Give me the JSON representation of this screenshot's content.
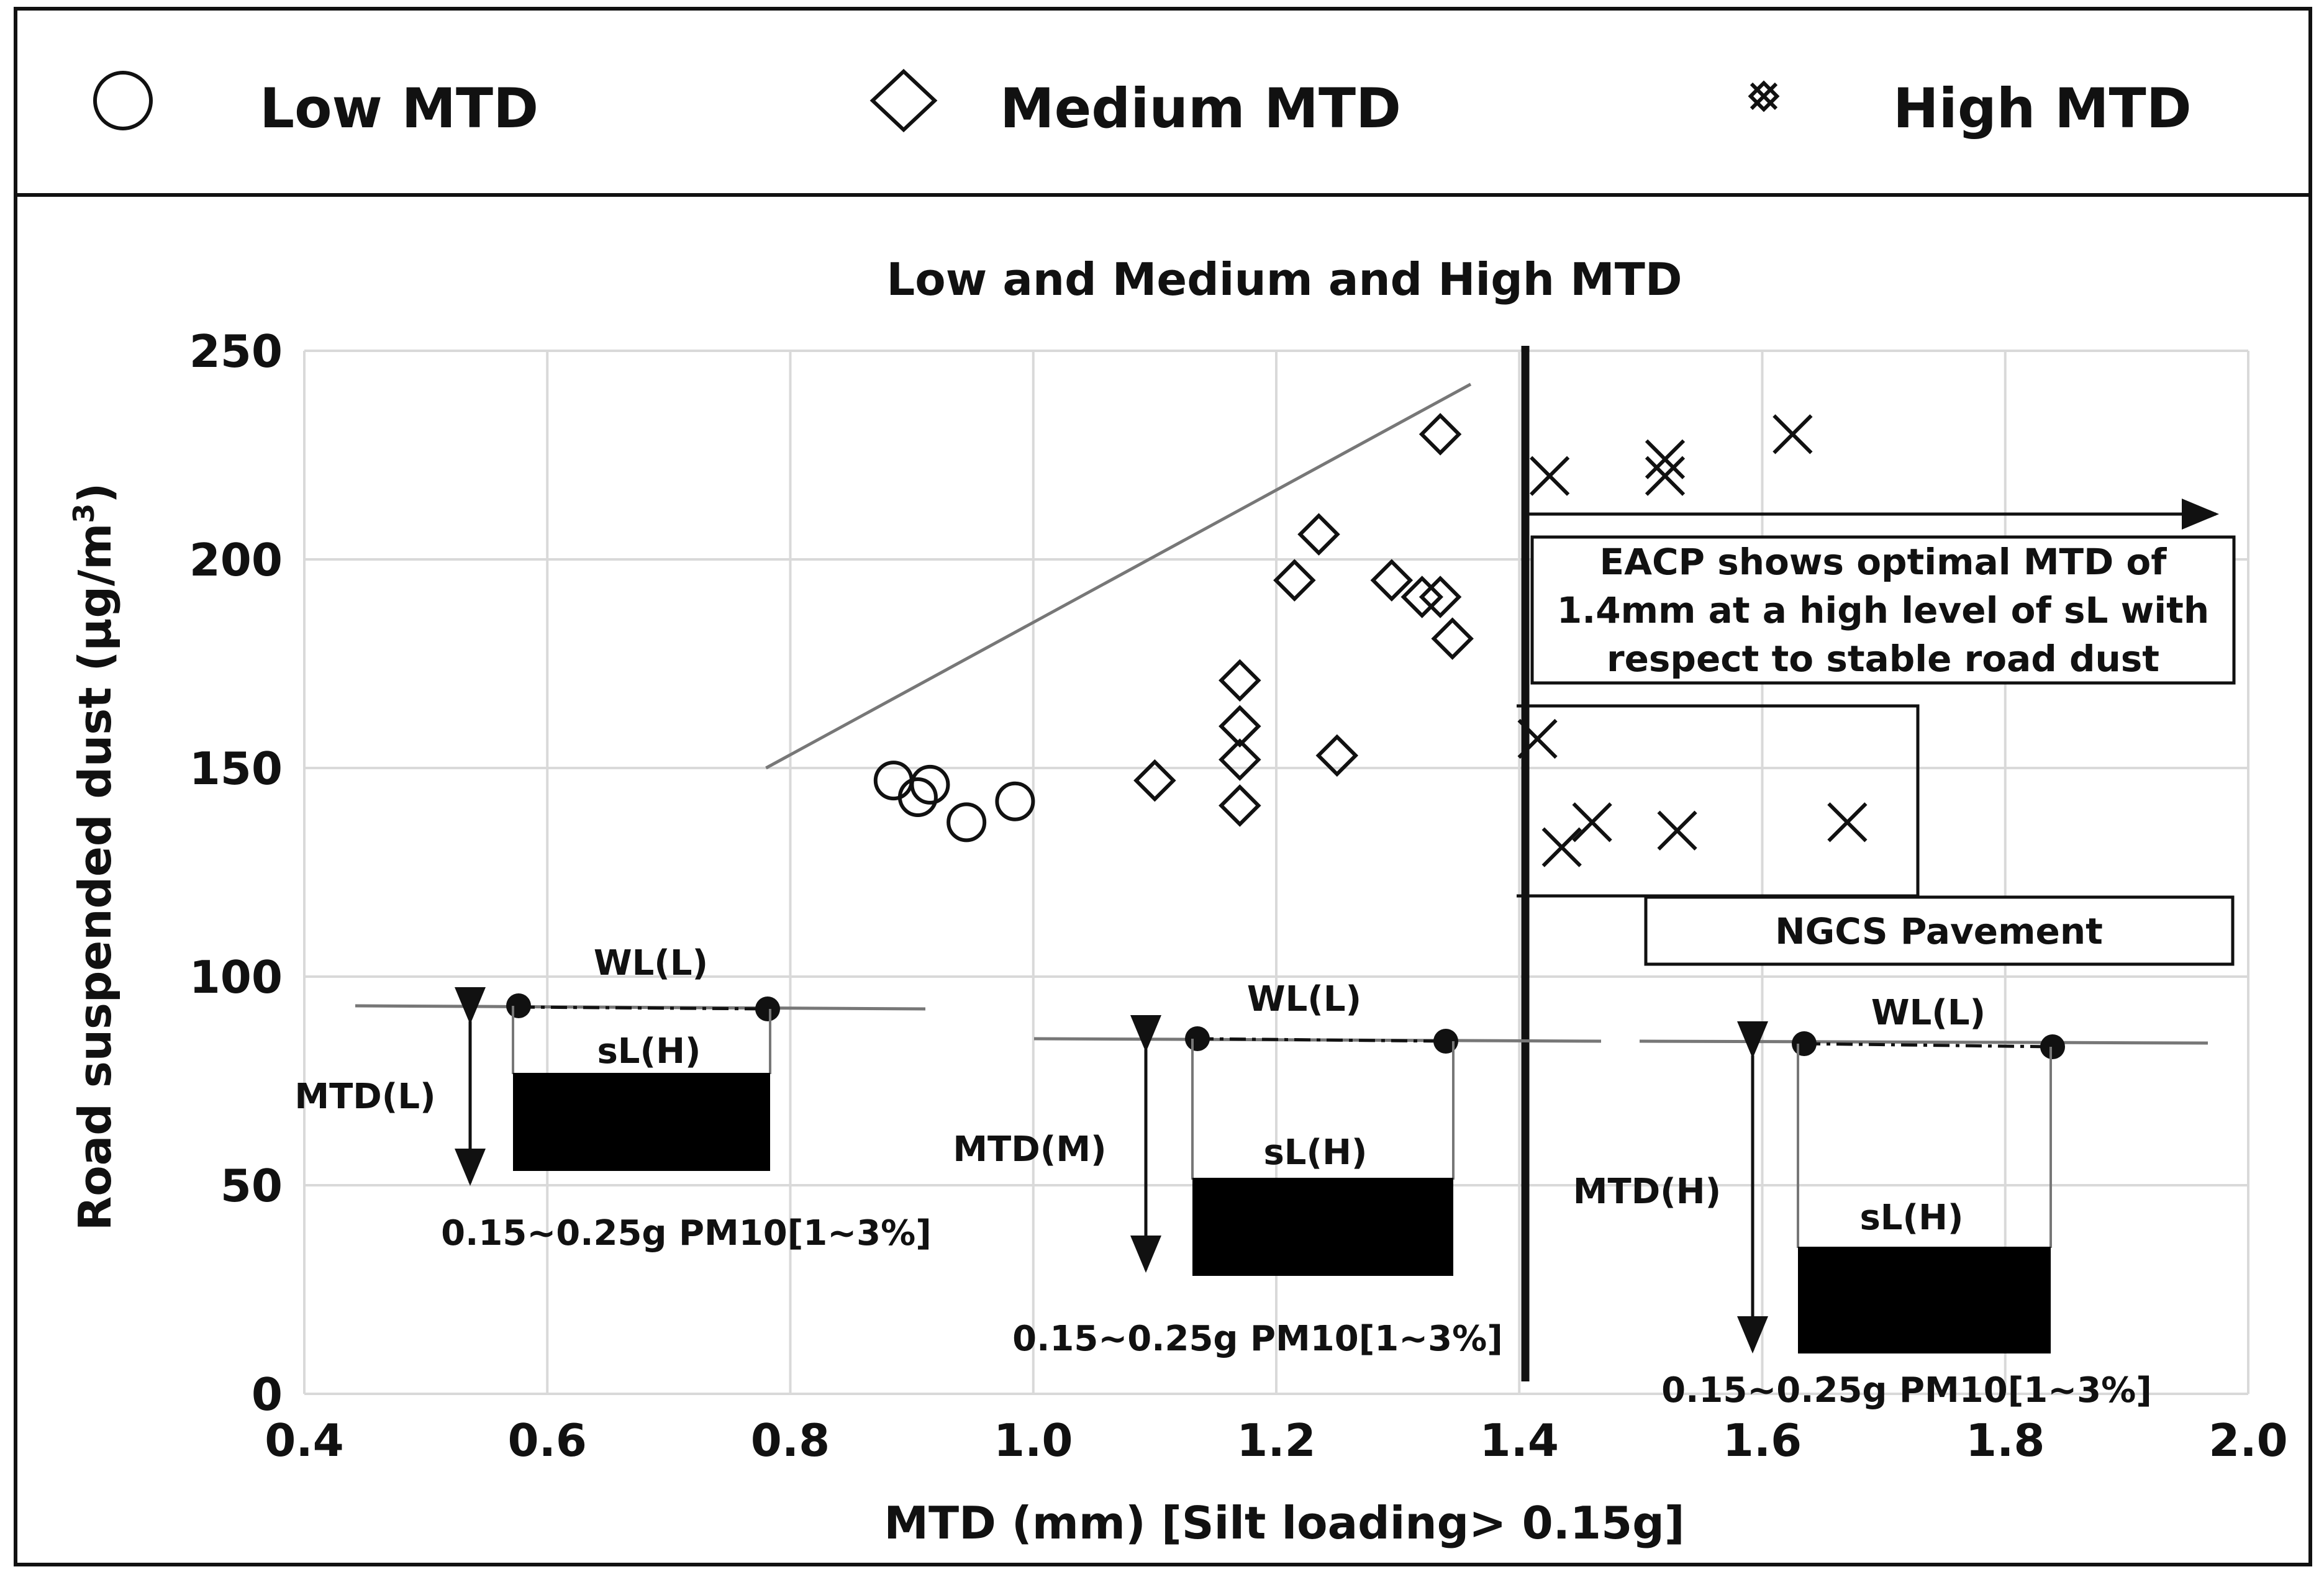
{
  "legend": [
    {
      "marker": "circle",
      "label": "Low MTD"
    },
    {
      "marker": "diamond",
      "label": "Medium MTD"
    },
    {
      "marker": "cross",
      "label": "High MTD"
    }
  ],
  "chart_data": {
    "type": "scatter",
    "title": "Low and Medium and High MTD",
    "xlabel": "MTD (mm) [Silt loading> 0.15g]",
    "ylabel": "Road suspended dust (μg/m³)",
    "xlim": [
      0.4,
      2.0
    ],
    "ylim": [
      0,
      250
    ],
    "x_ticks": [
      "0.4",
      "0.6",
      "0.8",
      "1.0",
      "1.2",
      "1.4",
      "1.6",
      "1.8",
      "2.0"
    ],
    "y_ticks": [
      "0",
      "50",
      "100",
      "150",
      "200",
      "250"
    ],
    "series": [
      {
        "name": "Low MTD",
        "marker": "circle",
        "points": [
          [
            0.885,
            147
          ],
          [
            0.905,
            143
          ],
          [
            0.915,
            146
          ],
          [
            0.945,
            137
          ],
          [
            0.985,
            142
          ]
        ]
      },
      {
        "name": "Medium MTD",
        "marker": "diamond",
        "points": [
          [
            1.1,
            147
          ],
          [
            1.17,
            171
          ],
          [
            1.17,
            160
          ],
          [
            1.17,
            152
          ],
          [
            1.17,
            141
          ],
          [
            1.215,
            195
          ],
          [
            1.235,
            206
          ],
          [
            1.25,
            153
          ],
          [
            1.295,
            195
          ],
          [
            1.32,
            191
          ],
          [
            1.335,
            191
          ],
          [
            1.335,
            230
          ],
          [
            1.345,
            181
          ]
        ]
      },
      {
        "name": "High MTD",
        "marker": "cross",
        "points": [
          [
            1.415,
            157
          ],
          [
            1.425,
            220
          ],
          [
            1.435,
            131
          ],
          [
            1.46,
            137
          ],
          [
            1.52,
            224
          ],
          [
            1.52,
            220
          ],
          [
            1.53,
            135
          ],
          [
            1.625,
            230
          ],
          [
            1.67,
            137
          ]
        ]
      }
    ],
    "trend_line": [
      [
        0.78,
        150
      ],
      [
        1.36,
        242
      ]
    ],
    "divider_x": 1.405,
    "annotations": {
      "arrow_text": [
        "EACP shows optimal MTD of",
        "1.4mm at a high level of sL with",
        "respect to stable road dust"
      ],
      "box_label": "NGCS Pavement",
      "insets": [
        {
          "wl": "WL(L)",
          "mtd": "MTD(L)",
          "sl": "sL(H)",
          "range": "0.15~0.25g PM10[1~3%]"
        },
        {
          "wl": "WL(L)",
          "mtd": "MTD(M)",
          "sl": "sL(H)",
          "range": "0.15~0.25g PM10[1~3%]"
        },
        {
          "wl": "WL(L)",
          "mtd": "MTD(H)",
          "sl": "sL(H)",
          "range": "0.15~0.25g PM10[1~3%]"
        }
      ]
    }
  }
}
